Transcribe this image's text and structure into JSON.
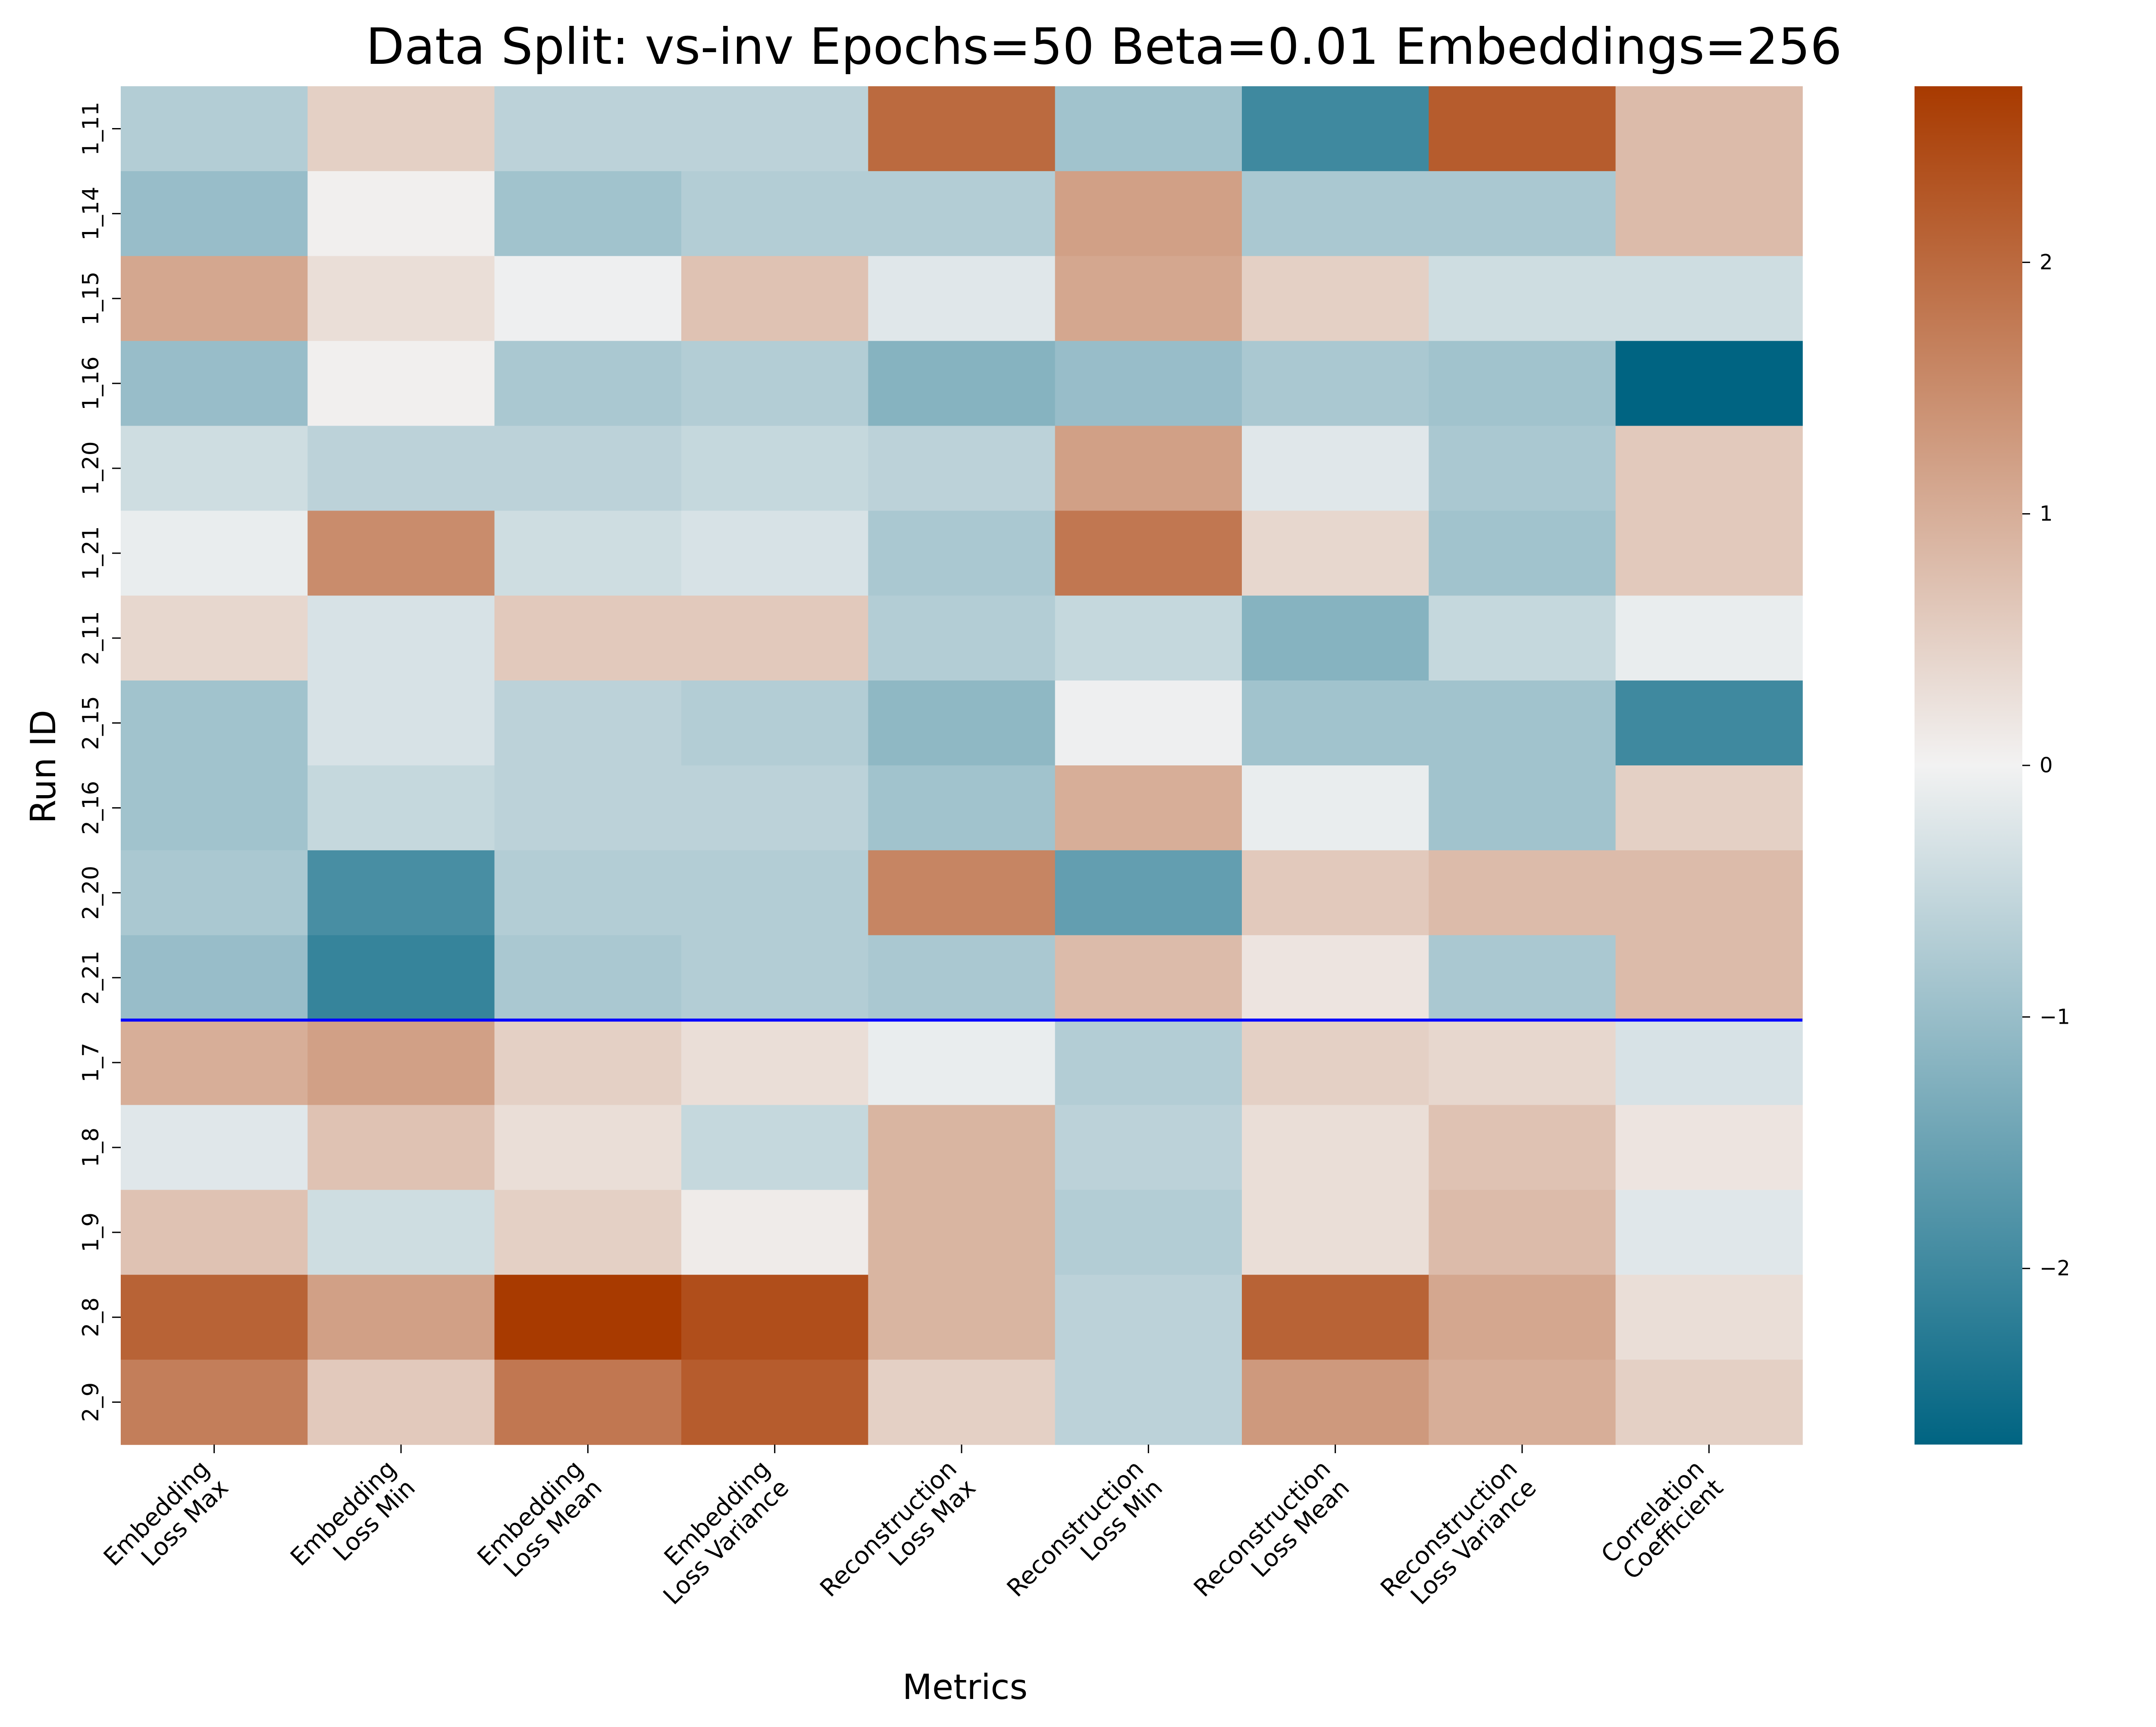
{
  "chart_data": {
    "type": "heatmap",
    "title": "Data Split: vs-inv Epochs=50 Beta=0.01 Embeddings=256",
    "xlabel": "Metrics",
    "ylabel": "Run ID",
    "columns": [
      "Embedding\nLoss Max",
      "Embedding\nLoss Min",
      "Embedding\nLoss Mean",
      "Embedding\nLoss Variance",
      "Reconstruction\nLoss Max",
      "Reconstruction\nLoss Min",
      "Reconstruction\nLoss Mean",
      "Reconstruction\nLoss Variance",
      "Correlation\nCoefficient"
    ],
    "rows": [
      "1_11",
      "1_14",
      "1_15",
      "1_16",
      "1_20",
      "1_21",
      "2_11",
      "2_15",
      "2_16",
      "2_20",
      "2_21",
      "1_7",
      "1_8",
      "1_9",
      "2_8",
      "2_9"
    ],
    "values": [
      [
        -0.7,
        0.5,
        -0.6,
        -0.6,
        2.0,
        -0.9,
        -2.0,
        2.2,
        0.8
      ],
      [
        -1.0,
        0.05,
        -0.9,
        -0.7,
        -0.7,
        1.2,
        -0.8,
        -0.8,
        0.8
      ],
      [
        1.1,
        0.3,
        -0.05,
        0.7,
        -0.2,
        1.1,
        0.5,
        -0.4,
        -0.4
      ],
      [
        -1.0,
        0.05,
        -0.8,
        -0.7,
        -1.2,
        -1.0,
        -0.8,
        -0.9,
        -2.7
      ],
      [
        -0.4,
        -0.6,
        -0.6,
        -0.5,
        -0.6,
        1.2,
        -0.2,
        -0.8,
        0.6
      ],
      [
        -0.1,
        1.5,
        -0.4,
        -0.3,
        -0.8,
        1.8,
        0.4,
        -0.9,
        0.6
      ],
      [
        0.4,
        -0.3,
        0.6,
        0.6,
        -0.7,
        -0.5,
        -1.2,
        -0.5,
        -0.1
      ],
      [
        -0.9,
        -0.3,
        -0.6,
        -0.7,
        -1.1,
        -0.05,
        -0.9,
        -0.9,
        -2.0
      ],
      [
        -0.9,
        -0.5,
        -0.6,
        -0.6,
        -0.9,
        1.0,
        -0.1,
        -0.9,
        0.5
      ],
      [
        -0.8,
        -1.9,
        -0.7,
        -0.7,
        1.6,
        -1.6,
        0.6,
        0.8,
        0.8
      ],
      [
        -1.0,
        -2.1,
        -0.8,
        -0.7,
        -0.8,
        0.8,
        0.2,
        -0.8,
        0.8
      ],
      [
        1.0,
        1.2,
        0.5,
        0.3,
        -0.1,
        -0.7,
        0.5,
        0.4,
        -0.3
      ],
      [
        -0.2,
        0.7,
        0.3,
        -0.5,
        0.9,
        -0.6,
        0.3,
        0.7,
        0.2
      ],
      [
        0.7,
        -0.4,
        0.5,
        0.1,
        0.9,
        -0.7,
        0.3,
        0.8,
        -0.2
      ],
      [
        2.1,
        1.2,
        2.7,
        2.4,
        0.9,
        -0.6,
        2.1,
        1.1,
        0.3
      ],
      [
        1.7,
        0.6,
        1.8,
        2.2,
        0.5,
        -0.6,
        1.3,
        1.0,
        0.5
      ]
    ],
    "separator_after_row": "2_21",
    "separator_color": "#0000ff",
    "color_range": [
      -2.7,
      2.7
    ],
    "colormap": {
      "low": "#006482",
      "mid": "#f2f2f2",
      "high": "#a83a00"
    },
    "colorbar_ticks": [
      2,
      1,
      0,
      -1,
      -2
    ],
    "colorbar_tick_labels": [
      "2",
      "1",
      "0",
      "−1",
      "−2"
    ],
    "grid": false
  }
}
